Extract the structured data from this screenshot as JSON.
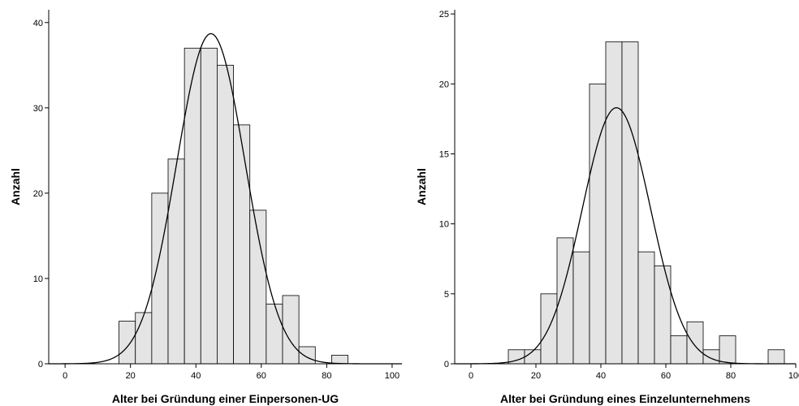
{
  "chart_data": [
    {
      "type": "bar",
      "subtype": "histogram-with-normal-curve",
      "xlabel": "Alter bei Gründung einer Einpersonen-UG",
      "ylabel": "Anzahl",
      "xlim": [
        -5,
        103
      ],
      "ylim": [
        0,
        41.5
      ],
      "x_ticks": [
        0,
        20,
        40,
        60,
        80,
        100
      ],
      "y_ticks": [
        0,
        10,
        20,
        30,
        40
      ],
      "bin_width": 5,
      "bins": [
        {
          "start": 16.5,
          "count": 5
        },
        {
          "start": 21.5,
          "count": 6
        },
        {
          "start": 26.5,
          "count": 20
        },
        {
          "start": 31.5,
          "count": 24
        },
        {
          "start": 36.5,
          "count": 37
        },
        {
          "start": 41.5,
          "count": 37
        },
        {
          "start": 46.5,
          "count": 35
        },
        {
          "start": 51.5,
          "count": 28
        },
        {
          "start": 56.5,
          "count": 18
        },
        {
          "start": 61.5,
          "count": 7
        },
        {
          "start": 66.5,
          "count": 8
        },
        {
          "start": 71.5,
          "count": 2
        },
        {
          "start": 76.5,
          "count": 0
        },
        {
          "start": 81.5,
          "count": 1
        }
      ],
      "normal_curve": {
        "mean": 44.6,
        "peak": 38.7,
        "sd": 10.5
      },
      "grid": false,
      "bar_color": "#e4e4e4",
      "line_color": "#000000"
    },
    {
      "type": "bar",
      "subtype": "histogram-with-normal-curve",
      "xlabel": "Alter bei Gründung eines Einzelunternehmens",
      "ylabel": "Anzahl",
      "xlim": [
        -5,
        100
      ],
      "ylim": [
        0,
        25.3
      ],
      "x_ticks": [
        0,
        20,
        40,
        60,
        80,
        100
      ],
      "y_ticks": [
        0,
        5,
        10,
        15,
        20,
        25
      ],
      "bin_width": 5,
      "bins": [
        {
          "start": 11.5,
          "count": 1
        },
        {
          "start": 16.5,
          "count": 1
        },
        {
          "start": 21.5,
          "count": 5
        },
        {
          "start": 26.5,
          "count": 9
        },
        {
          "start": 31.5,
          "count": 8
        },
        {
          "start": 36.5,
          "count": 20
        },
        {
          "start": 41.5,
          "count": 23
        },
        {
          "start": 46.5,
          "count": 23
        },
        {
          "start": 51.5,
          "count": 8
        },
        {
          "start": 56.5,
          "count": 7
        },
        {
          "start": 61.5,
          "count": 2
        },
        {
          "start": 66.5,
          "count": 3
        },
        {
          "start": 71.5,
          "count": 1
        },
        {
          "start": 76.5,
          "count": 2
        },
        {
          "start": 81.5,
          "count": 0
        },
        {
          "start": 86.5,
          "count": 0
        },
        {
          "start": 91.5,
          "count": 1
        }
      ],
      "normal_curve": {
        "mean": 44.8,
        "peak": 18.3,
        "sd": 10.5
      },
      "grid": false,
      "bar_color": "#e4e4e4",
      "line_color": "#000000"
    }
  ]
}
